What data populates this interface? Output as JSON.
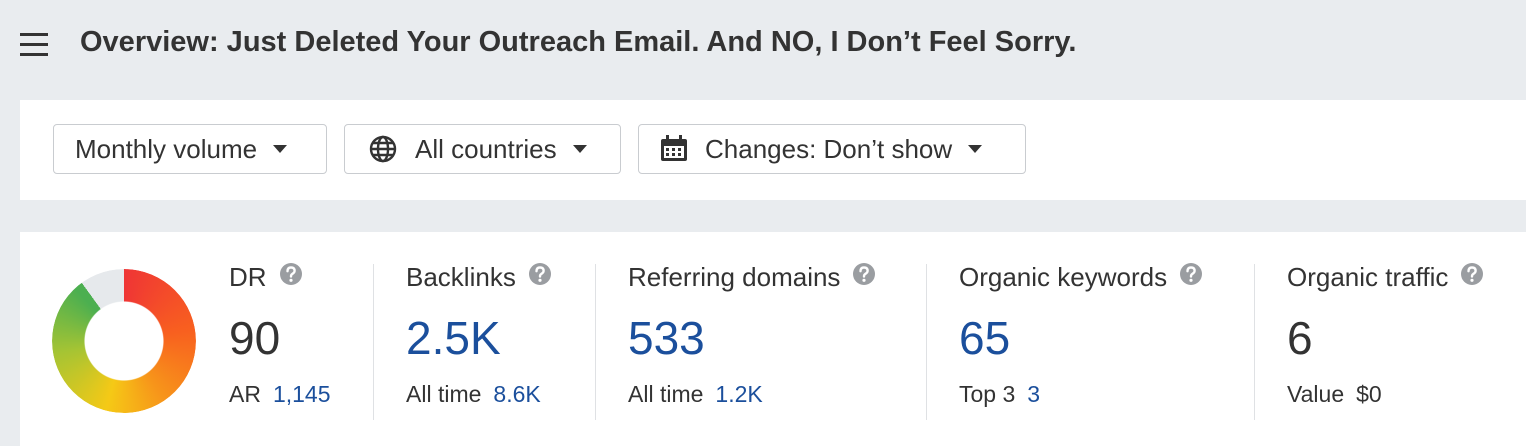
{
  "header": {
    "title": "Overview: Just Deleted Your Outreach Email. And NO, I Don’t Feel Sorry."
  },
  "filters": [
    {
      "label": "Monthly volume"
    },
    {
      "label": "All countries"
    },
    {
      "label": "Changes: Don’t show"
    }
  ],
  "metrics": [
    {
      "label": "DR",
      "value": "90",
      "value_color": "#333333",
      "sub_label": "AR",
      "sub_value": "1,145",
      "sub_color": "#1b4f9c"
    },
    {
      "label": "Backlinks",
      "value": "2.5K",
      "value_color": "#1b4f9c",
      "sub_label": "All time",
      "sub_value": "8.6K",
      "sub_color": "#1b4f9c"
    },
    {
      "label": "Referring domains",
      "value": "533",
      "value_color": "#1b4f9c",
      "sub_label": "All time",
      "sub_value": "1.2K",
      "sub_color": "#1b4f9c"
    },
    {
      "label": "Organic keywords",
      "value": "65",
      "value_color": "#1b4f9c",
      "sub_label": "Top 3",
      "sub_value": "3",
      "sub_color": "#1b4f9c"
    },
    {
      "label": "Organic traffic",
      "value": "6",
      "value_color": "#333333",
      "sub_label": "Value",
      "sub_value": "$0",
      "sub_color": "#333333"
    }
  ]
}
